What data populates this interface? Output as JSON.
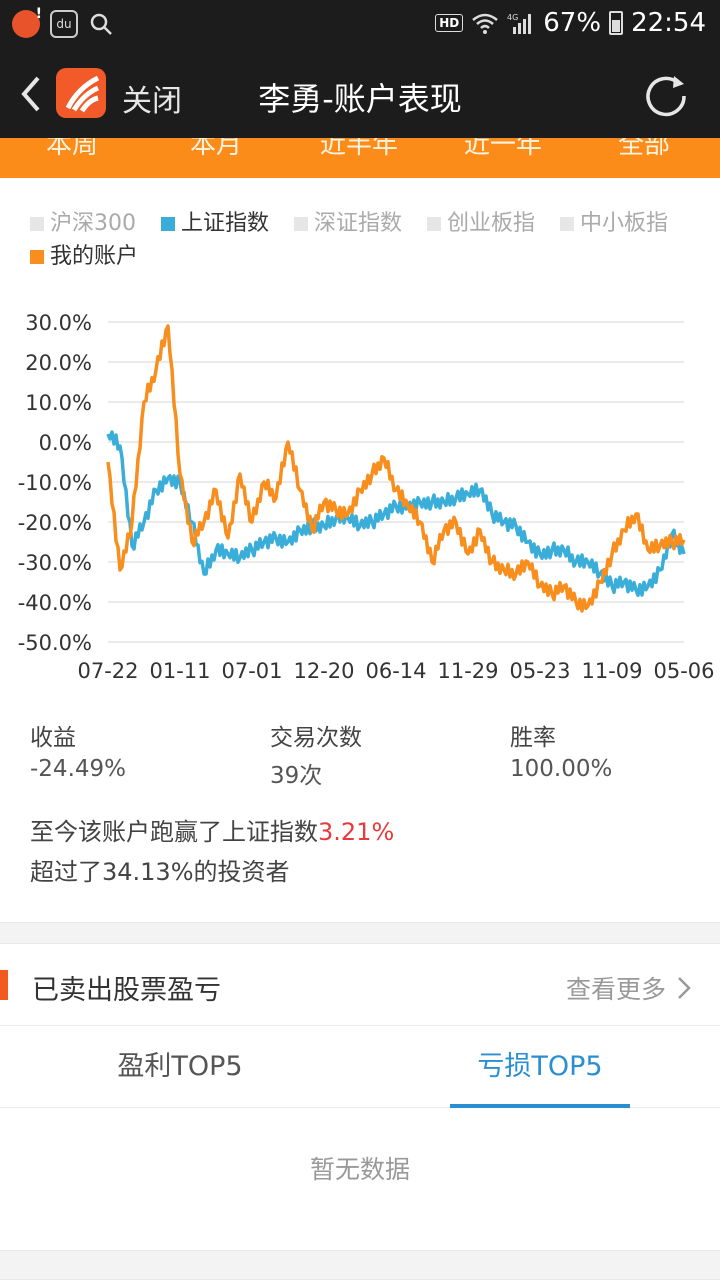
{
  "status_bar": {
    "battery": "67%",
    "time": "22:54",
    "hd_label": "HD",
    "network_label": "4G"
  },
  "header": {
    "close_label": "关闭",
    "title": "李勇-账户表现"
  },
  "period_tabs": [
    "本周",
    "本月",
    "近半年",
    "近一年",
    "全部"
  ],
  "legend": [
    {
      "label": "沪深300",
      "color": "#e6e6e6",
      "active": false
    },
    {
      "label": "上证指数",
      "color": "#3aaed8",
      "active": true
    },
    {
      "label": "深证指数",
      "color": "#e6e6e6",
      "active": false
    },
    {
      "label": "创业板指",
      "color": "#e6e6e6",
      "active": false
    },
    {
      "label": "中小板指",
      "color": "#e6e6e6",
      "active": false
    },
    {
      "label": "我的账户",
      "color": "#f78e1e",
      "active": true
    }
  ],
  "chart_data": {
    "type": "line",
    "y_ticks": [
      "30.0%",
      "20.0%",
      "10.0%",
      "0.0%",
      "-10.0%",
      "-20.0%",
      "-30.0%",
      "-40.0%",
      "-50.0%"
    ],
    "ylim": [
      -50,
      30
    ],
    "x_ticks": [
      "07-22",
      "01-11",
      "07-01",
      "12-20",
      "06-14",
      "11-29",
      "05-23",
      "11-09",
      "05-06"
    ],
    "grid": true,
    "series": [
      {
        "name": "上证指数",
        "color": "#3aaed8",
        "x": [
          0,
          0.5,
          1,
          1.5,
          2,
          2.5,
          3,
          3.5,
          4,
          4.5,
          5,
          5.5,
          6,
          6.5,
          7,
          7.5,
          8,
          8.5,
          9,
          9.5,
          10,
          10.5,
          11,
          11.5,
          12,
          12.5,
          13,
          13.5,
          14,
          14.5,
          15,
          15.5,
          16,
          16.5,
          17,
          17.5,
          18,
          18.5,
          19,
          19.5,
          20,
          20.5,
          21,
          21.5,
          22,
          22.5,
          23,
          23.5,
          24
        ],
        "values": [
          2,
          -1,
          -26,
          -20,
          -12,
          -9,
          -10,
          -20,
          -33,
          -27,
          -28,
          -29,
          -27,
          -25,
          -24,
          -25,
          -22,
          -21,
          -21,
          -19,
          -19,
          -21,
          -20,
          -18,
          -16,
          -16,
          -15,
          -15,
          -15,
          -14,
          -13,
          -12,
          -18,
          -20,
          -21,
          -25,
          -28,
          -27,
          -27,
          -30,
          -30,
          -33,
          -36,
          -35,
          -37,
          -36,
          -32,
          -23,
          -28
        ]
      },
      {
        "name": "我的账户",
        "color": "#f78e1e",
        "x": [
          0,
          0.5,
          1,
          1.5,
          2,
          2.5,
          3,
          3.5,
          4,
          4.5,
          5,
          5.5,
          6,
          6.5,
          7,
          7.5,
          8,
          8.5,
          9,
          9.5,
          10,
          10.5,
          11,
          11.5,
          12,
          12.5,
          13,
          13.5,
          14,
          14.5,
          15,
          15.5,
          16,
          16.5,
          17,
          17.5,
          18,
          18.5,
          19,
          19.5,
          20,
          20.5,
          21,
          21.5,
          22,
          22.5,
          23,
          23.5,
          24
        ],
        "values": [
          -5,
          -32,
          -20,
          10,
          18,
          29,
          -8,
          -25,
          -20,
          -12,
          -24,
          -8,
          -20,
          -10,
          -14,
          0,
          -12,
          -22,
          -15,
          -17,
          -18,
          -12,
          -8,
          -4,
          -12,
          -16,
          -20,
          -30,
          -22,
          -20,
          -28,
          -22,
          -30,
          -32,
          -33,
          -30,
          -36,
          -38,
          -36,
          -40,
          -41,
          -35,
          -28,
          -22,
          -18,
          -27,
          -26,
          -25,
          -24.5
        ]
      }
    ]
  },
  "stats": [
    {
      "label": "收益",
      "value": "-24.49%"
    },
    {
      "label": "交易次数",
      "value": "39次"
    },
    {
      "label": "胜率",
      "value": "100.00%"
    }
  ],
  "summary": {
    "line1_prefix": "至今该账户跑赢了上证指数",
    "line1_highlight": "3.21%",
    "line2": "超过了34.13%的投资者"
  },
  "section": {
    "title": "已卖出股票盈亏",
    "more_label": "查看更多"
  },
  "result_tabs": [
    {
      "label": "盈利TOP5",
      "active": false
    },
    {
      "label": "亏损TOP5",
      "active": true
    }
  ],
  "empty_text": "暂无数据"
}
